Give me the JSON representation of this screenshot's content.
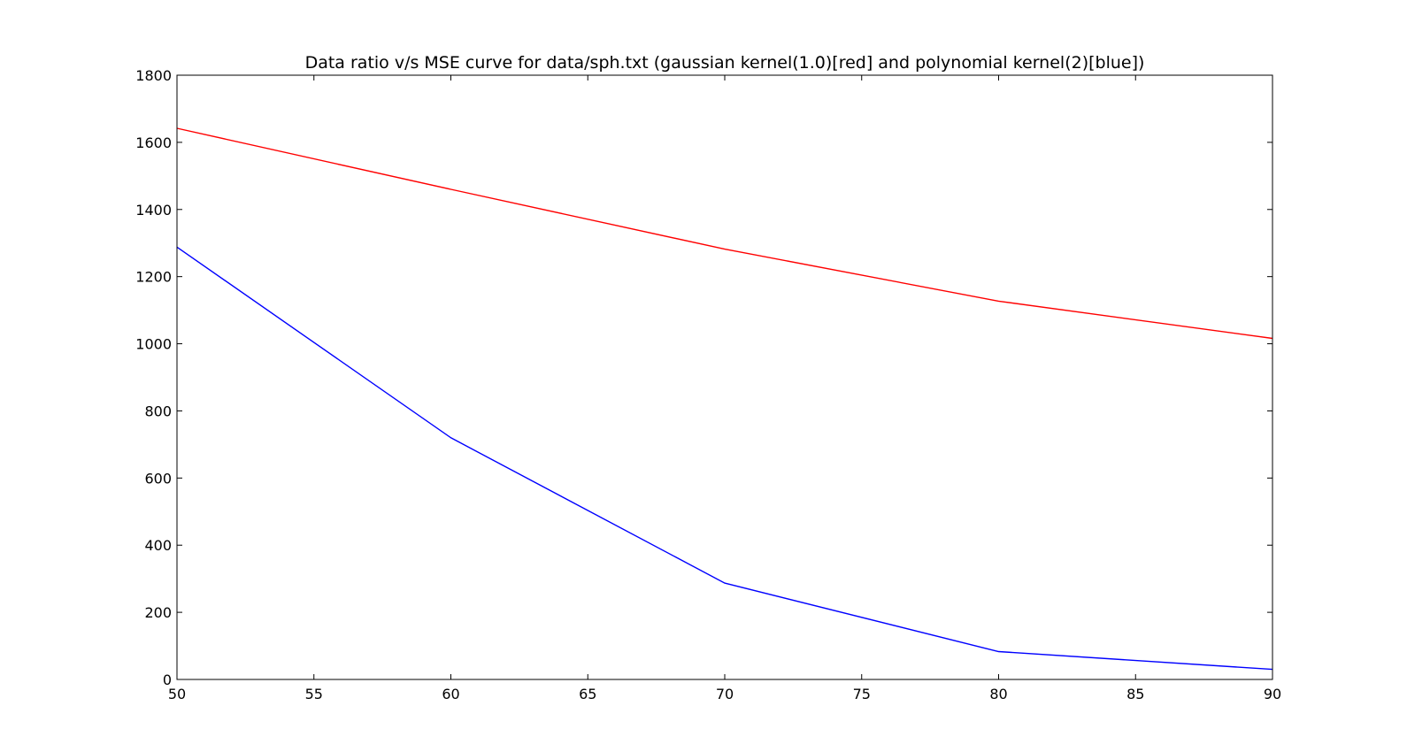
{
  "chart_data": {
    "type": "line",
    "title": "Data ratio v/s MSE curve for data/sph.txt (gaussian kernel(1.0)[red] and polynomial kernel(2)[blue])",
    "xlabel": "",
    "ylabel": "",
    "x": [
      50,
      60,
      70,
      80,
      90
    ],
    "xlim": [
      50,
      90
    ],
    "ylim": [
      0,
      1800
    ],
    "xticks": [
      50,
      55,
      60,
      65,
      70,
      75,
      80,
      85,
      90
    ],
    "yticks": [
      0,
      200,
      400,
      600,
      800,
      1000,
      1200,
      1400,
      1600,
      1800
    ],
    "grid": false,
    "legend": "none",
    "series": [
      {
        "color": "#ff0000",
        "values": [
          1642,
          1460,
          1282,
          1127,
          1016
        ]
      },
      {
        "color": "#0000ff",
        "values": [
          1288,
          720,
          287,
          83,
          30
        ]
      }
    ]
  }
}
